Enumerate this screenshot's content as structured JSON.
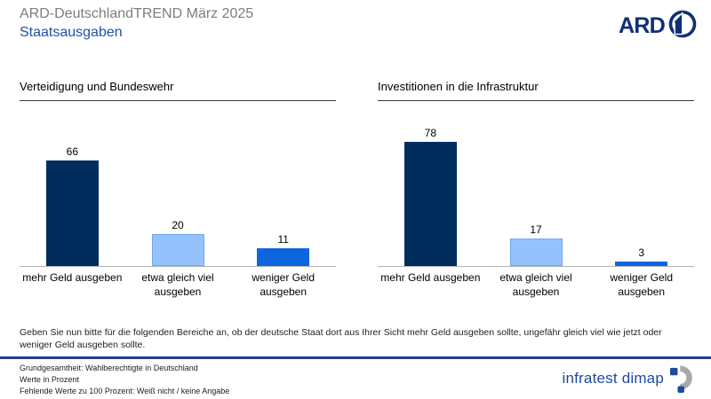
{
  "header": {
    "title": "ARD-DeutschlandTREND März 2025",
    "subtitle": "Staatsausgaben",
    "ard_logo_text": "ARD"
  },
  "chart_data": [
    {
      "type": "bar",
      "title": "Verteidigung und Bundeswehr",
      "categories": [
        "mehr Geld ausgeben",
        "etwa gleich viel ausgeben",
        "weniger Geld ausgeben"
      ],
      "values": [
        66,
        20,
        11
      ],
      "ylabel": "",
      "xlabel": "",
      "ylim": [
        0,
        100
      ],
      "unit": "Prozent",
      "grid": false,
      "legend": false
    },
    {
      "type": "bar",
      "title": "Investitionen in die Infrastruktur",
      "categories": [
        "mehr Geld ausgeben",
        "etwa gleich viel ausgeben",
        "weniger Geld ausgeben"
      ],
      "values": [
        78,
        17,
        3
      ],
      "ylabel": "",
      "xlabel": "",
      "ylim": [
        0,
        100
      ],
      "unit": "Prozent",
      "grid": false,
      "legend": false
    }
  ],
  "bar_styles": [
    {
      "fill": "#002d5e",
      "border": ""
    },
    {
      "fill": "#93c2fd",
      "border": "#6fa8f5"
    },
    {
      "fill": "#0e66dd",
      "border": ""
    }
  ],
  "question": "Geben Sie nun bitte für die folgenden Bereiche an, ob der deutsche Staat dort aus Ihrer Sicht mehr Geld ausgeben sollte, ungefähr gleich viel wie jetzt oder weniger Geld ausgeben sollte.",
  "footnotes": [
    "Grundgesamtheit: Wahlberechtigte in Deutschland",
    "Werte in Prozent",
    "Fehlende Werte zu 100 Prozent: Weiß nicht / keine Angabe"
  ],
  "branding": {
    "label": "infratest dimap"
  },
  "colors": {
    "title_gray": "#7d7d7d",
    "subtitle_blue": "#1d50a8",
    "ard_navy": "#0f3076",
    "divider_blue": "#253c8f",
    "baseline_gray": "#b3b3b3",
    "brand_blue": "#1b4a9e",
    "brand_gray": "#a7a9ac"
  }
}
